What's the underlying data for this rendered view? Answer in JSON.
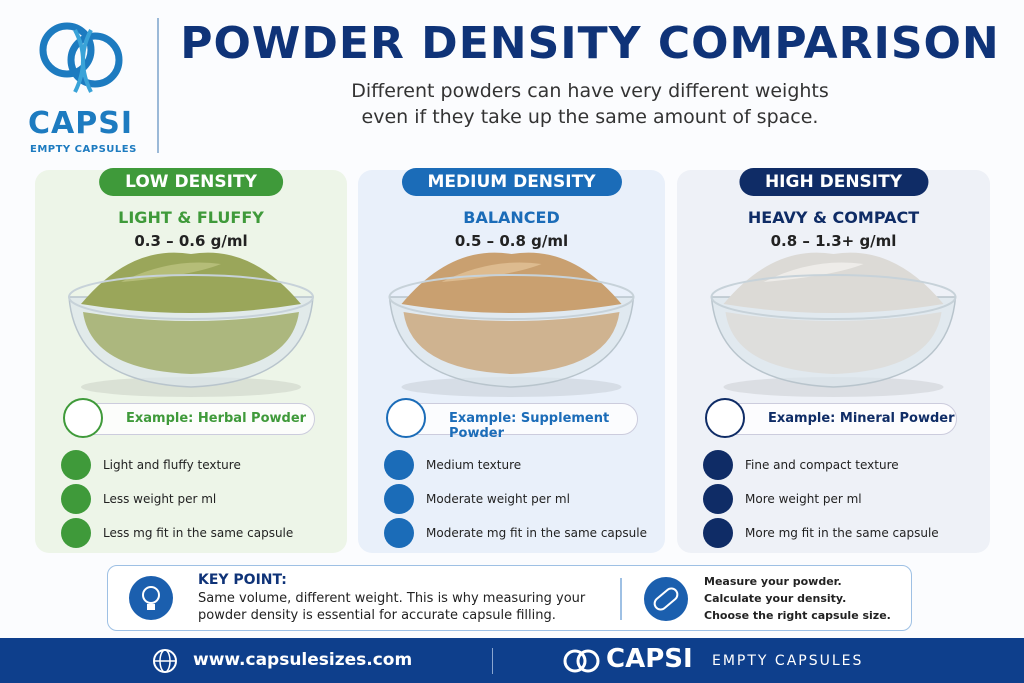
{
  "header": {
    "logo_name": "CAPSI",
    "logo_tagline": "EMPTY CAPSULES",
    "title": "POWDER DENSITY COMPARISON",
    "subtitle": [
      "Different powders can have very different weights",
      "even if they take up the same amount of space."
    ]
  },
  "columns": [
    {
      "badge": "LOW DENSITY",
      "heading": "LIGHT & FLUFFY",
      "range": "0.3 – 0.6 g/ml",
      "example": "Example: Herbal Powder",
      "features": [
        "Light and fluffy texture",
        "Less weight per ml",
        "Less mg fit in the same capsule"
      ]
    },
    {
      "badge": "MEDIUM DENSITY",
      "heading": "BALANCED",
      "range": "0.5 – 0.8 g/ml",
      "example": "Example: Supplement Powder",
      "features": [
        "Medium texture",
        "Moderate weight per ml",
        "Moderate mg fit in the same capsule"
      ]
    },
    {
      "badge": "HIGH DENSITY",
      "heading": "HEAVY & COMPACT",
      "range": "0.8 – 1.3+ g/ml",
      "example": "Example: Mineral Powder",
      "features": [
        "Fine and compact texture",
        "More weight per ml",
        "More mg fit in the same capsule"
      ]
    }
  ],
  "key_point": {
    "label": "KEY POINT:",
    "text": [
      "Same volume, different weight. This is why measuring your",
      "powder density is essential for accurate capsule filling."
    ],
    "steps": [
      "Measure your powder.",
      "Calculate your density.",
      "Choose the right capsule size."
    ]
  },
  "footer": {
    "website": "www.capsulesizes.com",
    "brand": "CAPSI",
    "tagline": "EMPTY CAPSULES"
  }
}
